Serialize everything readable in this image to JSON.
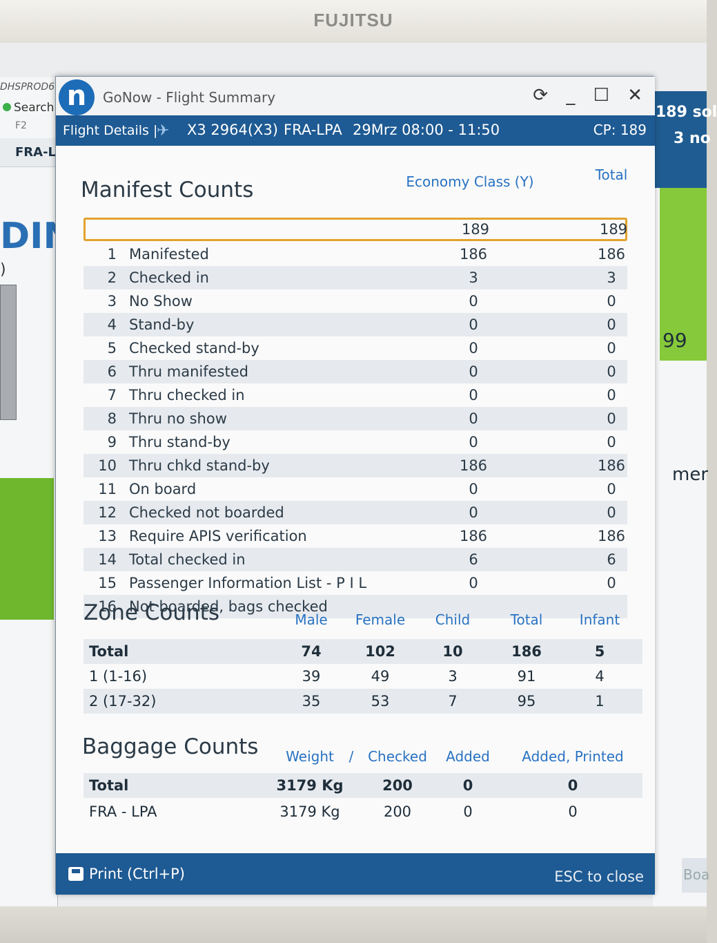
{
  "monitor": {
    "brand": "FUJITSU"
  },
  "background_app": {
    "env": "DHSPROD6",
    "search": "Search",
    "hotkey": "F2",
    "route": "FRA-L",
    "left_big": "DIN",
    "left_paren": ")",
    "right_top_1": "189 sol",
    "right_top_2": "3 no",
    "right_mid": "99",
    "right_low": "mer",
    "right_bottom": "Boa"
  },
  "window": {
    "app_title": "GoNow - Flight Summary",
    "controls": {
      "refresh": "⟳",
      "minimize": "_",
      "maximize": "☐",
      "close": "✕"
    }
  },
  "details_bar": {
    "label": "Flight Details |",
    "airline_icon": "airline-logo-icon",
    "flight": "X3 2964(X3)",
    "route": "FRA-LPA",
    "datetime": "29Mrz 08:00 - 11:50",
    "cp": "CP: 189"
  },
  "manifest": {
    "title": "Manifest Counts",
    "col1": "Economy Class (Y)",
    "col2": "Total",
    "header_values": {
      "economy": "189",
      "total": "189"
    },
    "rows": [
      {
        "num": "1",
        "label": "Manifested",
        "economy": "186",
        "total": "186"
      },
      {
        "num": "2",
        "label": "Checked in",
        "economy": "3",
        "total": "3"
      },
      {
        "num": "3",
        "label": "No Show",
        "economy": "0",
        "total": "0"
      },
      {
        "num": "4",
        "label": "Stand-by",
        "economy": "0",
        "total": "0"
      },
      {
        "num": "5",
        "label": "Checked stand-by",
        "economy": "0",
        "total": "0"
      },
      {
        "num": "6",
        "label": "Thru manifested",
        "economy": "0",
        "total": "0"
      },
      {
        "num": "7",
        "label": "Thru checked in",
        "economy": "0",
        "total": "0"
      },
      {
        "num": "8",
        "label": "Thru no show",
        "economy": "0",
        "total": "0"
      },
      {
        "num": "9",
        "label": "Thru stand-by",
        "economy": "0",
        "total": "0"
      },
      {
        "num": "10",
        "label": "Thru chkd stand-by",
        "economy": "186",
        "total": "186"
      },
      {
        "num": "11",
        "label": "On board",
        "economy": "0",
        "total": "0"
      },
      {
        "num": "12",
        "label": "Checked not boarded",
        "economy": "0",
        "total": "0"
      },
      {
        "num": "13",
        "label": "Require APIS verification",
        "economy": "186",
        "total": "186"
      },
      {
        "num": "14",
        "label": "Total checked in",
        "economy": "6",
        "total": "6"
      },
      {
        "num": "15",
        "label": "Passenger Information List - P I L",
        "economy": "0",
        "total": "0"
      },
      {
        "num": "16",
        "label": "Not boarded, bags checked",
        "economy": "",
        "total": ""
      }
    ]
  },
  "zones": {
    "title": "Zone Counts",
    "headers": [
      "Male",
      "Female",
      "Child",
      "Total",
      "Infant"
    ],
    "rows": [
      {
        "label": "Total",
        "male": "74",
        "female": "102",
        "child": "10",
        "total": "186",
        "infant": "5"
      },
      {
        "label": "1 (1-16)",
        "male": "39",
        "female": "49",
        "child": "3",
        "total": "91",
        "infant": "4"
      },
      {
        "label": "2 (17-32)",
        "male": "35",
        "female": "53",
        "child": "7",
        "total": "95",
        "infant": "1"
      }
    ]
  },
  "baggage": {
    "title": "Baggage Counts",
    "headers": {
      "weight": "Weight",
      "sep": "/",
      "checked": "Checked",
      "added": "Added",
      "added_printed": "Added, Printed"
    },
    "rows": [
      {
        "label": "Total",
        "weight": "3179 Kg",
        "checked": "200",
        "added": "0",
        "added_printed": "0"
      },
      {
        "label": "FRA - LPA",
        "weight": "3179 Kg",
        "checked": "200",
        "added": "0",
        "added_printed": "0"
      }
    ]
  },
  "footer": {
    "print": "Print (Ctrl+P)",
    "esc": "ESC to close"
  }
}
